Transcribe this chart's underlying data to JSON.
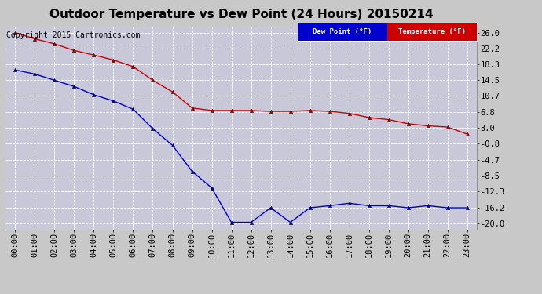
{
  "title": "Outdoor Temperature vs Dew Point (24 Hours) 20150214",
  "copyright": "Copyright 2015 Cartronics.com",
  "legend_dew": "Dew Point (°F)",
  "legend_temp": "Temperature (°F)",
  "x_labels": [
    "00:00",
    "01:00",
    "02:00",
    "03:00",
    "04:00",
    "05:00",
    "06:00",
    "07:00",
    "08:00",
    "09:00",
    "10:00",
    "11:00",
    "12:00",
    "13:00",
    "14:00",
    "15:00",
    "16:00",
    "17:00",
    "18:00",
    "19:00",
    "20:00",
    "21:00",
    "22:00",
    "23:00"
  ],
  "temperature": [
    26.0,
    24.5,
    23.3,
    21.7,
    20.6,
    19.4,
    17.8,
    14.5,
    11.7,
    7.8,
    7.2,
    7.2,
    7.2,
    7.0,
    7.0,
    7.2,
    7.0,
    6.5,
    5.5,
    5.0,
    4.0,
    3.5,
    3.2,
    1.5
  ],
  "dew_point": [
    17.0,
    16.0,
    14.5,
    13.0,
    11.0,
    9.5,
    7.5,
    2.8,
    -1.2,
    -7.5,
    -11.5,
    -19.8,
    -19.8,
    -16.3,
    -19.8,
    -16.3,
    -15.8,
    -15.2,
    -15.8,
    -15.8,
    -16.3,
    -15.8,
    -16.3,
    -16.3
  ],
  "yticks": [
    26.0,
    22.2,
    18.3,
    14.5,
    10.7,
    6.8,
    3.0,
    -0.8,
    -4.7,
    -8.5,
    -12.3,
    -16.2,
    -20.0
  ],
  "ylim": [
    -21.5,
    27.5
  ],
  "bg_color": "#c8c8c8",
  "plot_bg_color": "#c8c8d8",
  "temp_color": "#cc0000",
  "dew_color": "#0000cc",
  "marker_color": "#000000",
  "grid_color": "#ffffff",
  "title_fontsize": 11,
  "copyright_fontsize": 7,
  "tick_fontsize": 7.5,
  "legend_dew_bg": "#0000cc",
  "legend_temp_bg": "#cc0000",
  "legend_outer_bg": "#000080"
}
